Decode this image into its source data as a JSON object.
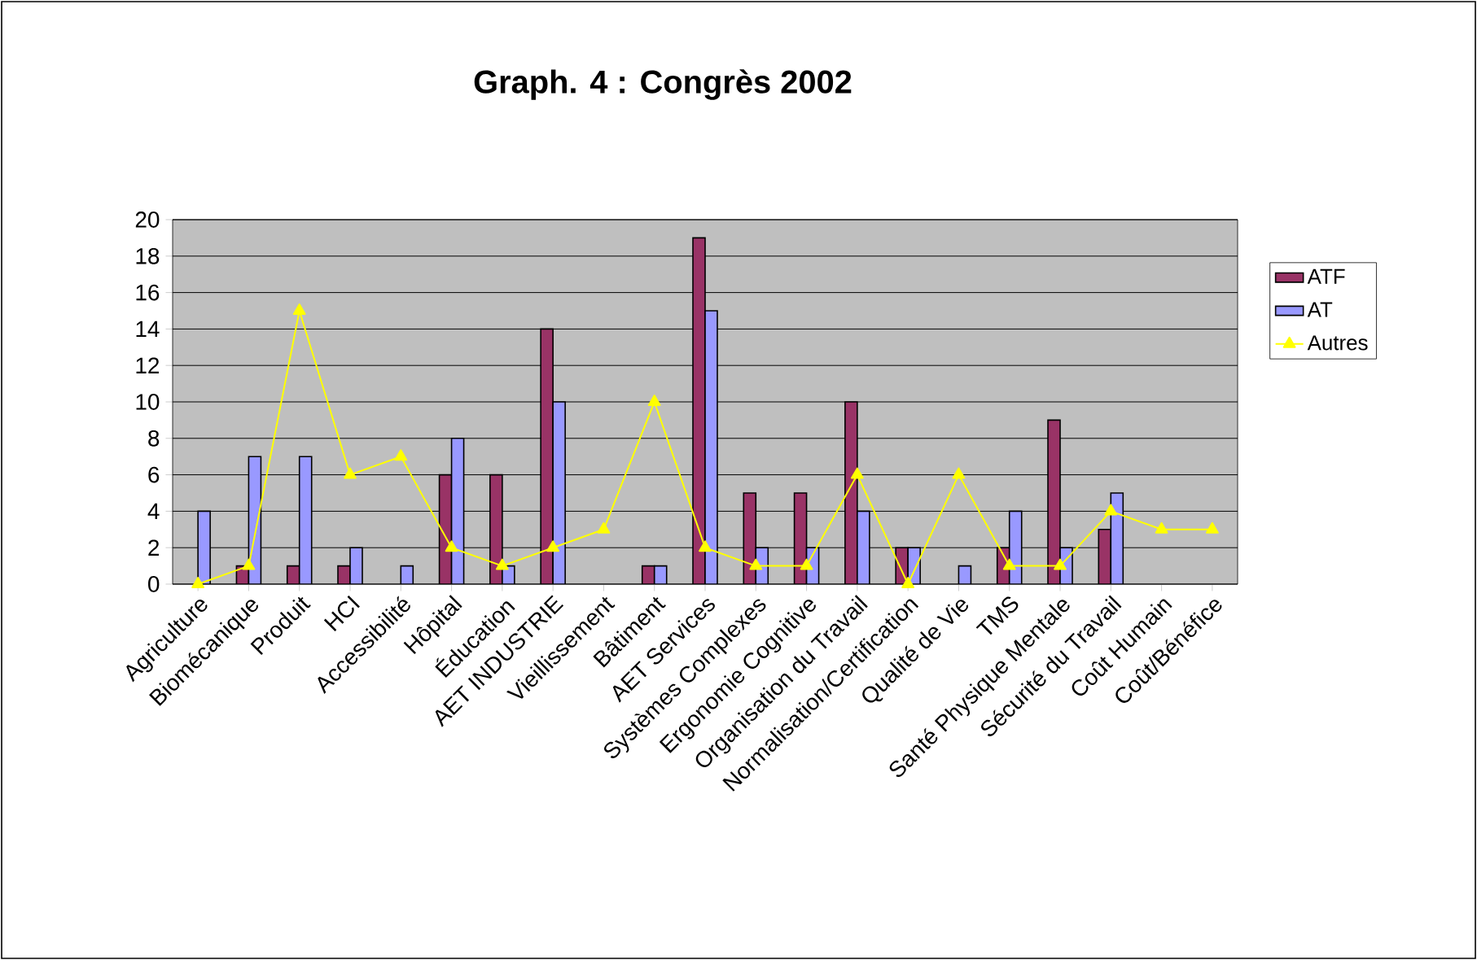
{
  "chart_data": {
    "type": "bar",
    "title": "Graph. 4 : Congrès 2002",
    "categories": [
      "Agriculture",
      "Biomécanique",
      "Produit",
      "HCI",
      "Accessibilité",
      "Hôpital",
      "Éducation",
      "AET INDUSTRIE",
      "Vieillissement",
      "Bâtiment",
      "AET Services",
      "Systèmes Complexes",
      "Ergonomie Cognitive",
      "Organisation du Travail",
      "Normalisation/Certification",
      "Qualité de Vie",
      "TMS",
      "Santé Physique Mentale",
      "Sécurité du Travail",
      "Coût Humain",
      "Coût/Bénéfice"
    ],
    "series": [
      {
        "name": "ATF",
        "color": "#993366",
        "values": [
          null,
          1,
          1,
          1,
          null,
          6,
          6,
          14,
          null,
          1,
          19,
          5,
          5,
          10,
          2,
          null,
          2,
          9,
          3,
          null,
          null
        ]
      },
      {
        "name": "AT",
        "color": "#9999ff",
        "values": [
          4,
          7,
          7,
          2,
          1,
          8,
          1,
          10,
          null,
          1,
          15,
          2,
          2,
          4,
          2,
          1,
          4,
          2,
          5,
          null,
          null
        ]
      },
      {
        "name": "Autres",
        "type": "line",
        "marker": "triangle",
        "color": "#ffff00",
        "values": [
          0,
          1,
          15,
          6,
          7,
          2,
          1,
          2,
          3,
          10,
          2,
          1,
          1,
          6,
          0,
          6,
          1,
          1,
          4,
          3,
          3
        ]
      }
    ],
    "ylim": [
      0,
      20
    ],
    "yticks": [
      0,
      2,
      4,
      6,
      8,
      10,
      12,
      14,
      16,
      18,
      20
    ],
    "grid": "y",
    "legend": "right"
  }
}
